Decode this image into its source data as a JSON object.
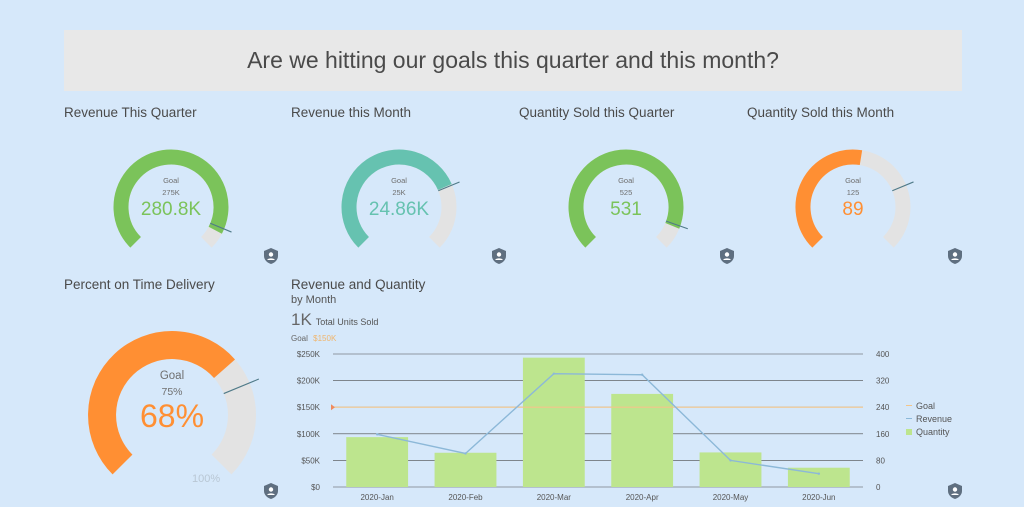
{
  "page": {
    "title": "Are we hitting our goals this quarter and this month?"
  },
  "gauges": [
    {
      "title": "Revenue This Quarter",
      "goal_label": "Goal",
      "goal_text": "275K",
      "value_text": "280.8K",
      "value": 280.8,
      "goal": 275,
      "max": 300,
      "color": "#7bc35a"
    },
    {
      "title": "Revenue this Month",
      "goal_label": "Goal",
      "goal_text": "25K",
      "value_text": "24.86K",
      "value": 24.86,
      "goal": 25,
      "max": 33.33,
      "color": "#66c2b0"
    },
    {
      "title": "Quantity Sold this Quarter",
      "goal_label": "Goal",
      "goal_text": "525",
      "value_text": "531",
      "value": 531,
      "goal": 525,
      "max": 580,
      "color": "#7bc35a"
    },
    {
      "title": "Quantity Sold this Month",
      "goal_label": "Goal",
      "goal_text": "125",
      "value_text": "89",
      "value": 89,
      "goal": 125,
      "max": 166.67,
      "color": "#ff8f33"
    }
  ],
  "delivery": {
    "title": "Percent on Time Delivery",
    "goal_label": "Goal",
    "goal_text": "75%",
    "value_text": "68%",
    "value": 68,
    "goal": 75,
    "max": 100,
    "max_text": "100%",
    "color": "#ff8f33"
  },
  "combo": {
    "title": "Revenue and Quantity",
    "subtitle": "by Month",
    "kpi_value": "1K",
    "kpi_label": "Total Units Sold",
    "goal_label": "Goal",
    "goal_value": "$150K"
  },
  "chart_data": {
    "type": "bar",
    "categories": [
      "2020-Jan",
      "2020-Feb",
      "2020-Mar",
      "2020-Apr",
      "2020-May",
      "2020-Jun"
    ],
    "series": [
      {
        "name": "Quantity",
        "type": "bar",
        "axis": "right",
        "values": [
          150,
          103,
          389,
          280,
          104,
          58
        ]
      },
      {
        "name": "Revenue",
        "type": "line",
        "axis": "left",
        "values": [
          99000,
          63000,
          213000,
          211000,
          50000,
          25000
        ]
      },
      {
        "name": "Goal",
        "type": "reference",
        "axis": "left",
        "value": 150000
      }
    ],
    "left_axis": {
      "min": 0,
      "max": 250000,
      "ticks": [
        "$0",
        "$50K",
        "$100K",
        "$150K",
        "$200K",
        "$250K"
      ]
    },
    "right_axis": {
      "min": 0,
      "max": 400,
      "ticks": [
        "0",
        "80",
        "160",
        "240",
        "320",
        "400"
      ]
    },
    "legend": [
      "Goal",
      "Revenue",
      "Quantity"
    ],
    "legend_position": "right",
    "colors": {
      "bar": "#bde58e",
      "line": "#8cb8d8",
      "goal": "#f3c58a",
      "grid": "#4a4a4a"
    }
  }
}
